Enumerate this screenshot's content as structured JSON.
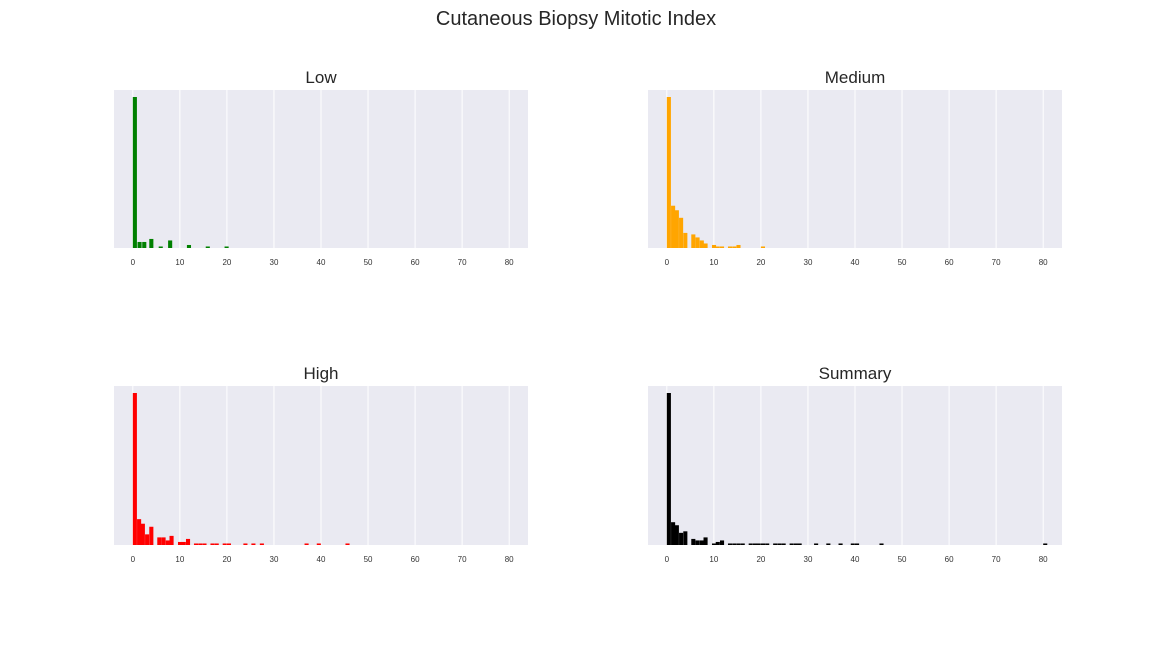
{
  "title": "Cutaneous Biopsy Mitotic Index",
  "chart_data": [
    {
      "type": "bar",
      "title": "Low",
      "color": "#008000",
      "xlim": [
        -4,
        84
      ],
      "xticks": [
        0,
        10,
        20,
        30,
        40,
        50,
        60,
        70,
        80
      ],
      "bin_width": 0.87,
      "grid": true,
      "bins": [
        {
          "x": 0,
          "count": 100
        },
        {
          "x": 1,
          "count": 4
        },
        {
          "x": 2,
          "count": 4
        },
        {
          "x": 3.5,
          "count": 6
        },
        {
          "x": 5.5,
          "count": 1
        },
        {
          "x": 7.5,
          "count": 5
        },
        {
          "x": 11.5,
          "count": 2
        },
        {
          "x": 15.5,
          "count": 1
        },
        {
          "x": 19.5,
          "count": 1
        }
      ]
    },
    {
      "type": "bar",
      "title": "Medium",
      "color": "#FFA500",
      "xlim": [
        -4,
        84
      ],
      "xticks": [
        0,
        10,
        20,
        30,
        40,
        50,
        60,
        70,
        80
      ],
      "bin_width": 0.87,
      "grid": true,
      "bins": [
        {
          "x": 0,
          "count": 100
        },
        {
          "x": 0.9,
          "count": 28
        },
        {
          "x": 1.7,
          "count": 25
        },
        {
          "x": 2.6,
          "count": 20
        },
        {
          "x": 3.5,
          "count": 10
        },
        {
          "x": 5.2,
          "count": 9
        },
        {
          "x": 6.1,
          "count": 7
        },
        {
          "x": 7,
          "count": 5
        },
        {
          "x": 7.8,
          "count": 3
        },
        {
          "x": 9.6,
          "count": 2
        },
        {
          "x": 10.4,
          "count": 1
        },
        {
          "x": 11.3,
          "count": 1
        },
        {
          "x": 13,
          "count": 1
        },
        {
          "x": 13.9,
          "count": 1
        },
        {
          "x": 14.8,
          "count": 2
        },
        {
          "x": 20,
          "count": 1
        }
      ]
    },
    {
      "type": "bar",
      "title": "High",
      "color": "#FF0000",
      "xlim": [
        -4,
        84
      ],
      "xticks": [
        0,
        10,
        20,
        30,
        40,
        50,
        60,
        70,
        80
      ],
      "bin_width": 0.87,
      "grid": true,
      "bins": [
        {
          "x": 0,
          "count": 100
        },
        {
          "x": 0.9,
          "count": 17
        },
        {
          "x": 1.7,
          "count": 14
        },
        {
          "x": 2.6,
          "count": 7
        },
        {
          "x": 3.5,
          "count": 12
        },
        {
          "x": 5.2,
          "count": 5
        },
        {
          "x": 6.1,
          "count": 5
        },
        {
          "x": 7,
          "count": 3
        },
        {
          "x": 7.8,
          "count": 6
        },
        {
          "x": 9.6,
          "count": 2
        },
        {
          "x": 10.4,
          "count": 2
        },
        {
          "x": 11.3,
          "count": 4
        },
        {
          "x": 13,
          "count": 1
        },
        {
          "x": 13.9,
          "count": 1
        },
        {
          "x": 14.8,
          "count": 1
        },
        {
          "x": 16.5,
          "count": 1
        },
        {
          "x": 17.4,
          "count": 1
        },
        {
          "x": 19.1,
          "count": 1
        },
        {
          "x": 20,
          "count": 1
        },
        {
          "x": 23.5,
          "count": 1
        },
        {
          "x": 25.2,
          "count": 1
        },
        {
          "x": 27,
          "count": 1
        },
        {
          "x": 36.5,
          "count": 1
        },
        {
          "x": 39.1,
          "count": 1
        },
        {
          "x": 45.2,
          "count": 1
        }
      ]
    },
    {
      "type": "bar",
      "title": "Summary",
      "color": "#000000",
      "xlim": [
        -4,
        84
      ],
      "xticks": [
        0,
        10,
        20,
        30,
        40,
        50,
        60,
        70,
        80
      ],
      "bin_width": 0.87,
      "grid": true,
      "bins": [
        {
          "x": 0,
          "count": 100
        },
        {
          "x": 0.9,
          "count": 15
        },
        {
          "x": 1.7,
          "count": 13
        },
        {
          "x": 2.6,
          "count": 8
        },
        {
          "x": 3.5,
          "count": 9
        },
        {
          "x": 5.2,
          "count": 4
        },
        {
          "x": 6.1,
          "count": 3
        },
        {
          "x": 7,
          "count": 3
        },
        {
          "x": 7.8,
          "count": 5
        },
        {
          "x": 9.6,
          "count": 1
        },
        {
          "x": 10.4,
          "count": 2
        },
        {
          "x": 11.3,
          "count": 3
        },
        {
          "x": 13,
          "count": 1
        },
        {
          "x": 13.9,
          "count": 1
        },
        {
          "x": 14.8,
          "count": 1
        },
        {
          "x": 15.7,
          "count": 1
        },
        {
          "x": 17.4,
          "count": 1
        },
        {
          "x": 18.3,
          "count": 1
        },
        {
          "x": 19.1,
          "count": 1
        },
        {
          "x": 20,
          "count": 1
        },
        {
          "x": 20.9,
          "count": 1
        },
        {
          "x": 22.6,
          "count": 1
        },
        {
          "x": 23.5,
          "count": 1
        },
        {
          "x": 24.4,
          "count": 1
        },
        {
          "x": 26.1,
          "count": 1
        },
        {
          "x": 27,
          "count": 1
        },
        {
          "x": 27.8,
          "count": 1
        },
        {
          "x": 31.3,
          "count": 1
        },
        {
          "x": 33.9,
          "count": 1
        },
        {
          "x": 36.5,
          "count": 1
        },
        {
          "x": 39.1,
          "count": 1
        },
        {
          "x": 40,
          "count": 1
        },
        {
          "x": 45.2,
          "count": 1
        },
        {
          "x": 80,
          "count": 1
        }
      ]
    }
  ]
}
